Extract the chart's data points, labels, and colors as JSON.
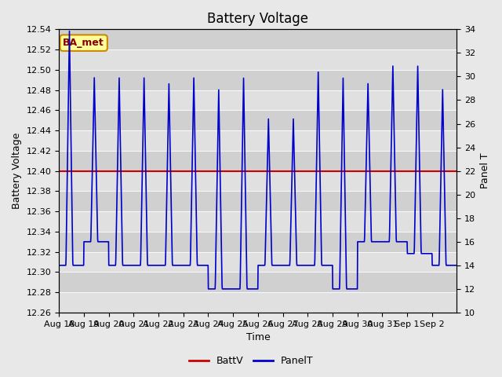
{
  "title": "Battery Voltage",
  "xlabel": "Time",
  "ylabel_left": "Battery Voltage",
  "ylabel_right": "Panel T",
  "ylim_left": [
    12.26,
    12.54
  ],
  "ylim_right": [
    10,
    34
  ],
  "battv_value": 12.4,
  "battv_color": "#cc0000",
  "panelt_color": "#0000cc",
  "fig_bg_color": "#e8e8e8",
  "plot_bg_color": "#d4d4d4",
  "annotation_text": "BA_met",
  "annotation_bg": "#ffff99",
  "annotation_border": "#cc8800",
  "annotation_text_color": "#880000",
  "x_tick_labels": [
    "Aug 18",
    "Aug 19",
    "Aug 20",
    "Aug 21",
    "Aug 22",
    "Aug 23",
    "Aug 24",
    "Aug 25",
    "Aug 26",
    "Aug 27",
    "Aug 28",
    "Aug 29",
    "Aug 30",
    "Aug 31",
    "Sep 1",
    "Sep 2"
  ],
  "title_fontsize": 12,
  "label_fontsize": 9,
  "tick_fontsize": 8,
  "legend_fontsize": 9,
  "band_colors": [
    "#e0e0e0",
    "#d0d0d0"
  ]
}
